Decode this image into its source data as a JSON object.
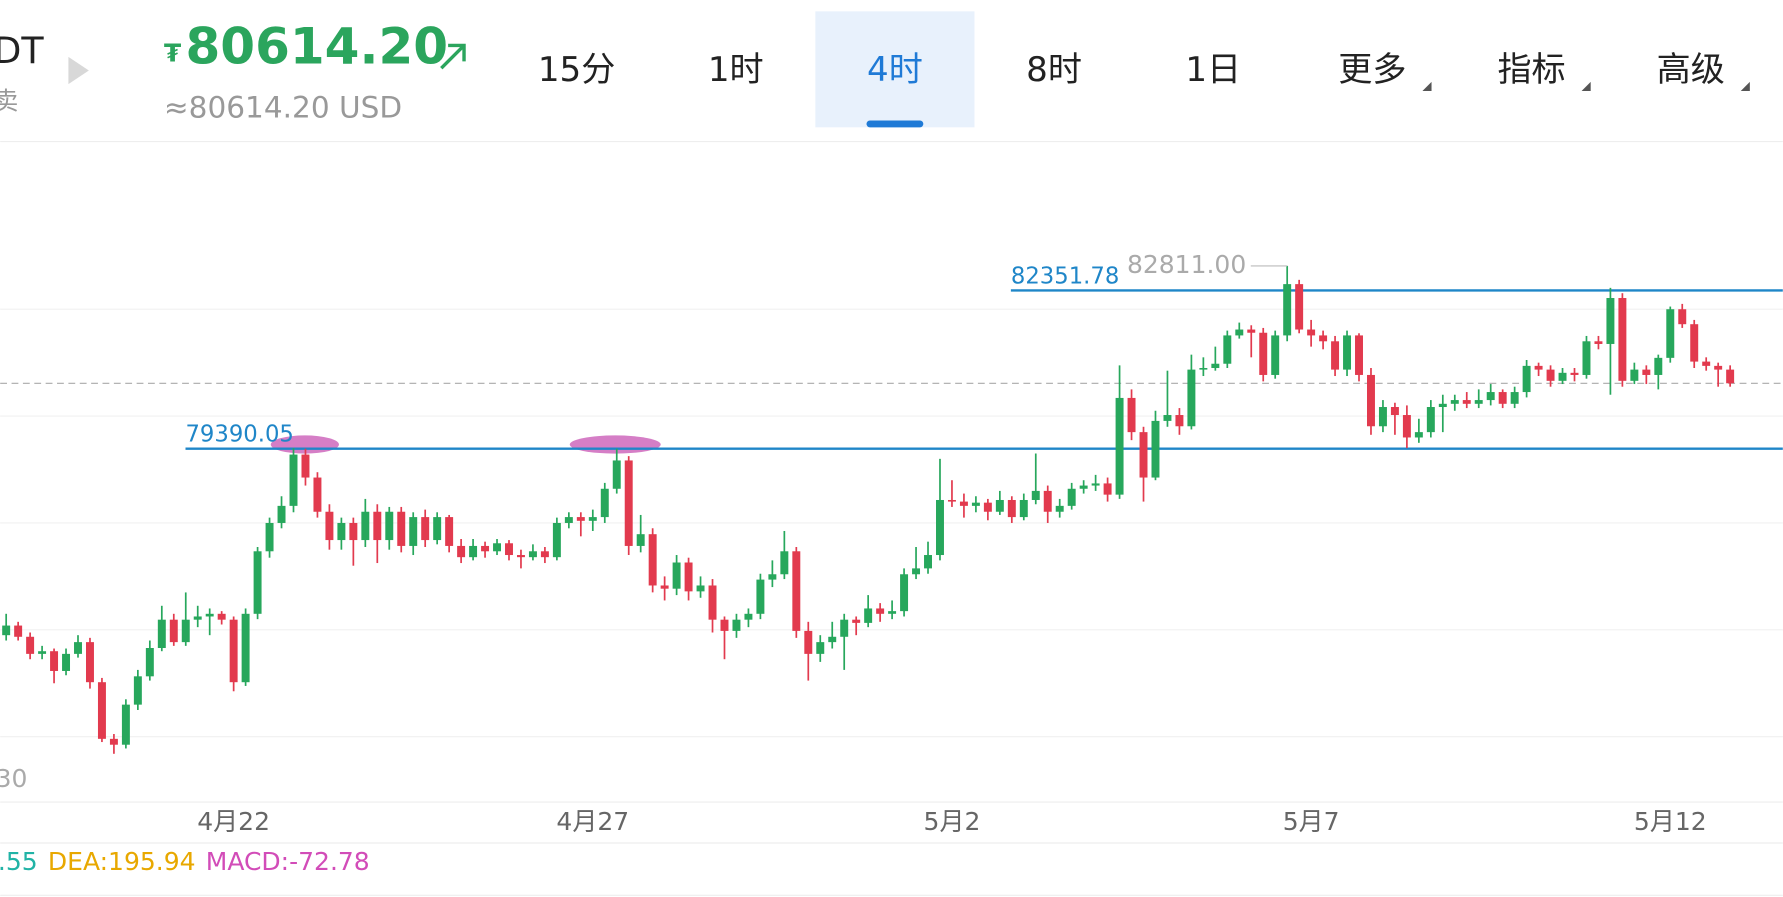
{
  "header": {
    "pair_fragment": "DT",
    "side_fragment": "卖",
    "currency_symbol": "₮",
    "price": "80614.20",
    "price_usd": "≈80614.20 USD"
  },
  "tabs": [
    {
      "label": "15分"
    },
    {
      "label": "1时"
    },
    {
      "label": "4时",
      "active": true
    },
    {
      "label": "8时"
    },
    {
      "label": "1日"
    },
    {
      "label": "更多",
      "dropdown": true
    },
    {
      "label": "指标",
      "dropdown": true
    },
    {
      "label": "高级",
      "dropdown": true
    }
  ],
  "chart_data": {
    "type": "candlestick",
    "up_color": "#27a75c",
    "down_color": "#e23a4e",
    "xlim": [
      -0.5,
      148.4
    ],
    "ylim": [
      73000,
      84000
    ],
    "yticks": [
      74000,
      76000,
      78000,
      80000,
      82000
    ],
    "grid": true,
    "xticks": [
      {
        "value": 19,
        "label": "4月22"
      },
      {
        "value": 49,
        "label": "4月27"
      },
      {
        "value": 79,
        "label": "5月2"
      },
      {
        "value": 109,
        "label": "5月7"
      },
      {
        "value": 139,
        "label": "5月12"
      }
    ],
    "hlines": [
      {
        "value": 82351.78,
        "color": "#1f86c8"
      },
      {
        "value": 79390.05,
        "color": "#1f86c8"
      }
    ],
    "high_label": {
      "value": 82811,
      "label": "82811.00"
    },
    "low_label": "30",
    "indicator_legend": [
      {
        "text": ".55",
        "color": "#21b3a6"
      },
      {
        "text": "DEA:195.94",
        "color": "#e8a800"
      },
      {
        "text": "MACD:-72.78",
        "color": "#d24cb8"
      }
    ],
    "candles": [
      [
        75900,
        76300,
        75800,
        76080
      ],
      [
        76080,
        76150,
        75800,
        75870
      ],
      [
        75870,
        75950,
        75450,
        75550
      ],
      [
        75550,
        75700,
        75450,
        75600
      ],
      [
        75600,
        75650,
        75000,
        75230
      ],
      [
        75230,
        75650,
        75150,
        75550
      ],
      [
        75550,
        75900,
        75480,
        75770
      ],
      [
        75770,
        75850,
        74900,
        75020
      ],
      [
        75020,
        75100,
        73900,
        73960
      ],
      [
        73960,
        74050,
        73680,
        73850
      ],
      [
        73850,
        74700,
        73780,
        74600
      ],
      [
        74600,
        75250,
        74500,
        75130
      ],
      [
        75130,
        75800,
        75050,
        75660
      ],
      [
        75660,
        76450,
        75600,
        76190
      ],
      [
        76190,
        76300,
        75700,
        75770
      ],
      [
        75770,
        76700,
        75700,
        76190
      ],
      [
        76190,
        76450,
        76050,
        76250
      ],
      [
        76250,
        76400,
        75900,
        76300
      ],
      [
        76300,
        76350,
        76100,
        76190
      ],
      [
        76190,
        76250,
        74850,
        75020
      ],
      [
        75020,
        76400,
        74950,
        76300
      ],
      [
        76300,
        77550,
        76200,
        77470
      ],
      [
        77470,
        78100,
        77350,
        78000
      ],
      [
        78000,
        78500,
        77900,
        78320
      ],
      [
        78320,
        79400,
        78200,
        79280
      ],
      [
        79280,
        79390,
        78700,
        78850
      ],
      [
        78850,
        78950,
        78100,
        78210
      ],
      [
        78210,
        78350,
        77500,
        77680
      ],
      [
        77680,
        78100,
        77500,
        78000
      ],
      [
        78000,
        78100,
        77200,
        77680
      ],
      [
        77680,
        78450,
        77550,
        78210
      ],
      [
        78210,
        78350,
        77250,
        77680
      ],
      [
        77680,
        78300,
        77500,
        78210
      ],
      [
        78210,
        78300,
        77450,
        77570
      ],
      [
        77570,
        78200,
        77400,
        78110
      ],
      [
        78110,
        78250,
        77550,
        77680
      ],
      [
        77680,
        78200,
        77600,
        78110
      ],
      [
        78110,
        78150,
        77450,
        77570
      ],
      [
        77570,
        77700,
        77250,
        77360
      ],
      [
        77360,
        77700,
        77300,
        77570
      ],
      [
        77570,
        77650,
        77350,
        77470
      ],
      [
        77470,
        77700,
        77400,
        77620
      ],
      [
        77620,
        77680,
        77300,
        77400
      ],
      [
        77400,
        77500,
        77150,
        77360
      ],
      [
        77360,
        77600,
        77300,
        77470
      ],
      [
        77470,
        77550,
        77250,
        77360
      ],
      [
        77360,
        78100,
        77300,
        78000
      ],
      [
        78000,
        78200,
        77900,
        78110
      ],
      [
        78110,
        78200,
        77750,
        78040
      ],
      [
        78040,
        78250,
        77850,
        78110
      ],
      [
        78110,
        78750,
        78000,
        78640
      ],
      [
        78640,
        79390,
        78550,
        79170
      ],
      [
        79170,
        79250,
        77400,
        77570
      ],
      [
        77570,
        78150,
        77450,
        77790
      ],
      [
        77790,
        77900,
        76700,
        76830
      ],
      [
        76830,
        77000,
        76550,
        76770
      ],
      [
        76770,
        77400,
        76650,
        77260
      ],
      [
        77260,
        77350,
        76550,
        76720
      ],
      [
        76720,
        77000,
        76600,
        76830
      ],
      [
        76830,
        76950,
        75950,
        76190
      ],
      [
        76190,
        76250,
        75450,
        75980
      ],
      [
        75980,
        76300,
        75850,
        76190
      ],
      [
        76190,
        76400,
        76050,
        76300
      ],
      [
        76300,
        77050,
        76200,
        76940
      ],
      [
        76940,
        77300,
        76800,
        77040
      ],
      [
        77040,
        77850,
        76950,
        77470
      ],
      [
        77470,
        77550,
        75850,
        75980
      ],
      [
        75980,
        76150,
        75050,
        75550
      ],
      [
        75550,
        75900,
        75400,
        75770
      ],
      [
        75770,
        76150,
        75650,
        75870
      ],
      [
        75870,
        76300,
        75250,
        76190
      ],
      [
        76190,
        76250,
        75900,
        76130
      ],
      [
        76130,
        76650,
        76050,
        76400
      ],
      [
        76400,
        76500,
        76150,
        76300
      ],
      [
        76300,
        76550,
        76200,
        76350
      ],
      [
        76350,
        77150,
        76250,
        77040
      ],
      [
        77040,
        77550,
        76950,
        77150
      ],
      [
        77150,
        77650,
        77050,
        77400
      ],
      [
        77400,
        79200,
        77300,
        78430
      ],
      [
        78430,
        78800,
        78300,
        78400
      ],
      [
        78400,
        78550,
        78100,
        78320
      ],
      [
        78320,
        78500,
        78200,
        78380
      ],
      [
        78380,
        78450,
        78050,
        78210
      ],
      [
        78210,
        78600,
        78150,
        78430
      ],
      [
        78430,
        78500,
        78000,
        78110
      ],
      [
        78110,
        78550,
        78050,
        78430
      ],
      [
        78430,
        79300,
        78350,
        78600
      ],
      [
        78600,
        78700,
        78000,
        78210
      ],
      [
        78210,
        78450,
        78100,
        78320
      ],
      [
        78320,
        78750,
        78250,
        78640
      ],
      [
        78640,
        78800,
        78550,
        78700
      ],
      [
        78700,
        78900,
        78600,
        78740
      ],
      [
        78740,
        78850,
        78400,
        78530
      ],
      [
        78530,
        80950,
        78450,
        80340
      ],
      [
        80340,
        80500,
        79550,
        79700
      ],
      [
        79700,
        79800,
        78400,
        78850
      ],
      [
        78850,
        80100,
        78800,
        79910
      ],
      [
        79910,
        80850,
        79800,
        80020
      ],
      [
        80020,
        80150,
        79650,
        79810
      ],
      [
        79810,
        81150,
        79750,
        80870
      ],
      [
        80870,
        81100,
        80750,
        80900
      ],
      [
        80900,
        81300,
        80850,
        80980
      ],
      [
        80980,
        81600,
        80900,
        81510
      ],
      [
        81510,
        81750,
        81450,
        81620
      ],
      [
        81620,
        81700,
        81100,
        81560
      ],
      [
        81560,
        81650,
        80650,
        80770
      ],
      [
        80770,
        81600,
        80700,
        81510
      ],
      [
        81510,
        82811,
        81400,
        82470
      ],
      [
        82470,
        82550,
        81550,
        81620
      ],
      [
        81620,
        81800,
        81300,
        81510
      ],
      [
        81510,
        81600,
        81250,
        81400
      ],
      [
        81400,
        81500,
        80750,
        80870
      ],
      [
        80870,
        81600,
        80750,
        81510
      ],
      [
        81510,
        81550,
        80650,
        80770
      ],
      [
        80770,
        80900,
        79650,
        79810
      ],
      [
        79810,
        80300,
        79700,
        80170
      ],
      [
        80170,
        80250,
        79650,
        80020
      ],
      [
        80020,
        80200,
        79400,
        79600
      ],
      [
        79600,
        79950,
        79500,
        79700
      ],
      [
        79700,
        80300,
        79600,
        80170
      ],
      [
        80170,
        80400,
        79700,
        80230
      ],
      [
        80230,
        80400,
        80100,
        80300
      ],
      [
        80300,
        80450,
        80150,
        80230
      ],
      [
        80230,
        80500,
        80150,
        80300
      ],
      [
        80300,
        80600,
        80200,
        80450
      ],
      [
        80450,
        80500,
        80150,
        80230
      ],
      [
        80230,
        80550,
        80150,
        80450
      ],
      [
        80450,
        81050,
        80350,
        80940
      ],
      [
        80940,
        81000,
        80750,
        80870
      ],
      [
        80870,
        80950,
        80550,
        80660
      ],
      [
        80660,
        80900,
        80600,
        80810
      ],
      [
        80810,
        80900,
        80650,
        80770
      ],
      [
        80770,
        81500,
        80700,
        81400
      ],
      [
        81400,
        81500,
        81250,
        81350
      ],
      [
        81350,
        82400,
        80400,
        82210
      ],
      [
        82210,
        82300,
        80550,
        80660
      ],
      [
        80660,
        81000,
        80600,
        80870
      ],
      [
        80870,
        80950,
        80600,
        80770
      ],
      [
        80770,
        81150,
        80500,
        81090
      ],
      [
        81090,
        82050,
        81000,
        82000
      ],
      [
        82000,
        82100,
        81650,
        81720
      ],
      [
        81720,
        81800,
        80900,
        81020
      ],
      [
        81020,
        81100,
        80850,
        80940
      ],
      [
        80940,
        81000,
        80550,
        80870
      ],
      [
        80870,
        80950,
        80550,
        80614.2
      ]
    ]
  }
}
